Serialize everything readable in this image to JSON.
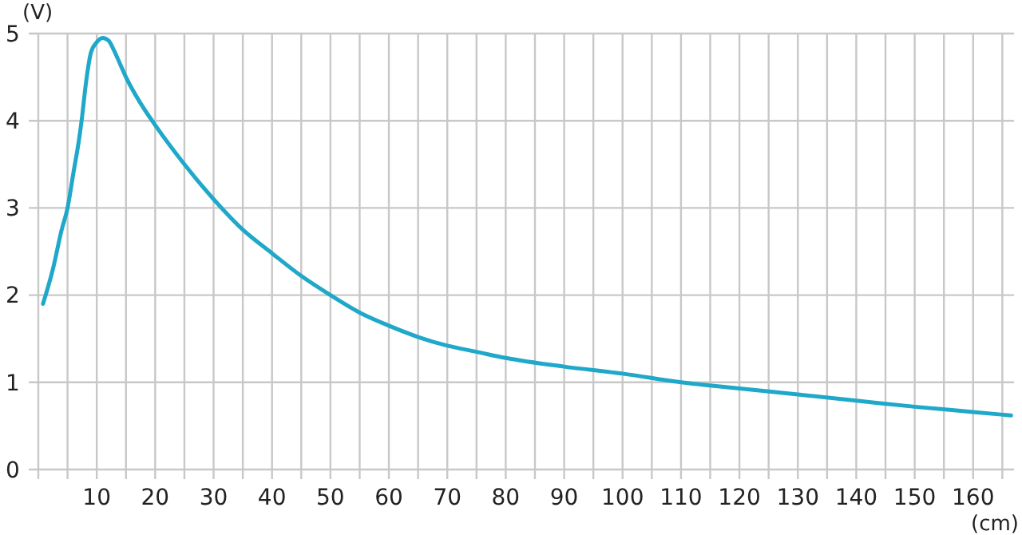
{
  "chart_data": {
    "type": "line",
    "xlabel": "(cm)",
    "ylabel": "(V)",
    "x": [
      0.8,
      2.5,
      4,
      5,
      6,
      7,
      7.5,
      8,
      8.5,
      9,
      10,
      11,
      12,
      13,
      14,
      15,
      17.5,
      20,
      25,
      30,
      35,
      40,
      45,
      50,
      55,
      60,
      65,
      70,
      75,
      80,
      90,
      100,
      110,
      120,
      130,
      140,
      150,
      160,
      166.5
    ],
    "series": [
      {
        "color": "#1fa8c9",
        "values": [
          1.9,
          2.3,
          2.75,
          3.0,
          3.4,
          3.8,
          4.05,
          4.35,
          4.6,
          4.78,
          4.9,
          4.95,
          4.92,
          4.8,
          4.65,
          4.5,
          4.2,
          3.95,
          3.5,
          3.1,
          2.75,
          2.48,
          2.22,
          2.0,
          1.8,
          1.65,
          1.52,
          1.42,
          1.35,
          1.28,
          1.18,
          1.1,
          1.0,
          0.93,
          0.86,
          0.79,
          0.72,
          0.66,
          0.62
        ]
      }
    ],
    "xlim": [
      0,
      167
    ],
    "ylim": [
      0,
      5
    ],
    "xticks": [
      {
        "value": 0,
        "label": null
      },
      {
        "value": 5,
        "label": null
      },
      10,
      {
        "value": 15,
        "label": null
      },
      20,
      {
        "value": 25,
        "label": null
      },
      30,
      {
        "value": 35,
        "label": null
      },
      40,
      {
        "value": 45,
        "label": null
      },
      50,
      {
        "value": 55,
        "label": null
      },
      60,
      {
        "value": 65,
        "label": null
      },
      70,
      {
        "value": 75,
        "label": null
      },
      80,
      {
        "value": 85,
        "label": null
      },
      90,
      {
        "value": 95,
        "label": null
      },
      100,
      {
        "value": 105,
        "label": null
      },
      110,
      {
        "value": 115,
        "label": null
      },
      120,
      {
        "value": 125,
        "label": null
      },
      130,
      {
        "value": 135,
        "label": null
      },
      140,
      {
        "value": 145,
        "label": null
      },
      150,
      {
        "value": 155,
        "label": null
      },
      160,
      {
        "value": 165,
        "label": null
      }
    ],
    "yticks": [
      0,
      1,
      2,
      3,
      4,
      5
    ],
    "grid": true,
    "marker": "none",
    "line_style": "solid"
  }
}
